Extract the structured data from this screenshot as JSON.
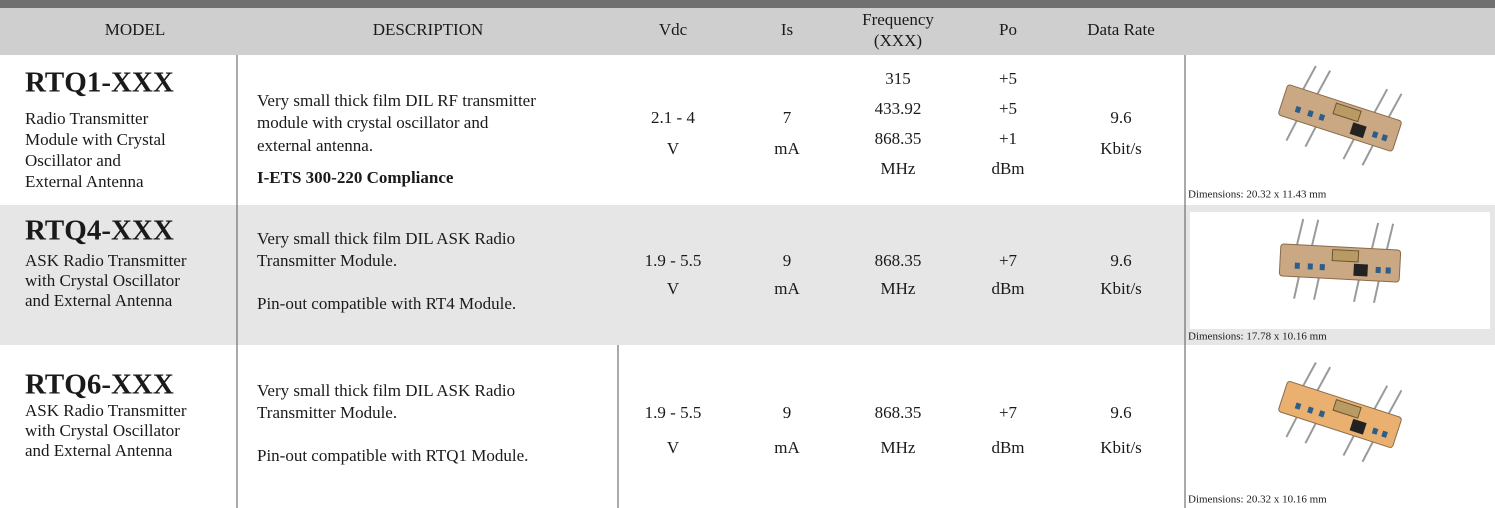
{
  "header": {
    "model": "MODEL",
    "description": "DESCRIPTION",
    "vdc": "Vdc",
    "is": "Is",
    "frequency": [
      "Frequency",
      "(XXX)"
    ],
    "po": "Po",
    "data_rate": "Data Rate"
  },
  "rows": [
    {
      "model": "RTQ1-XXX",
      "subtitle": [
        "Radio Transmitter",
        "Module with Crystal",
        "Oscillator and",
        "External Antenna"
      ],
      "description": [
        "Very small thick film DIL RF transmitter",
        "module with crystal oscillator and",
        "external antenna."
      ],
      "compliance": "I-ETS 300-220 Compliance",
      "vdc": [
        "2.1 - 4",
        "V"
      ],
      "is": [
        "7",
        "mA"
      ],
      "frequency": [
        "315",
        "433.92",
        "868.35",
        "MHz"
      ],
      "po": [
        "+5",
        "+5",
        "+1",
        "dBm"
      ],
      "data_rate": [
        "9.6",
        "Kbit/s"
      ],
      "dimensions": "Dimensions: 20.32 x 11.43 mm"
    },
    {
      "model": "RTQ4-XXX",
      "subtitle": [
        "ASK Radio Transmitter",
        "with Crystal Oscillator",
        "and External Antenna"
      ],
      "description": [
        "Very small thick film DIL ASK Radio",
        "Transmitter Module."
      ],
      "note": "Pin-out compatible with RT4 Module.",
      "vdc": [
        "1.9 - 5.5",
        "V"
      ],
      "is": [
        "9",
        "mA"
      ],
      "frequency": [
        "868.35",
        "MHz"
      ],
      "po": [
        "+7",
        "dBm"
      ],
      "data_rate": [
        "9.6",
        "Kbit/s"
      ],
      "dimensions": "Dimensions: 17.78 x 10.16 mm"
    },
    {
      "model": "RTQ6-XXX",
      "subtitle": [
        "ASK Radio Transmitter",
        "with Crystal Oscillator",
        "and External Antenna"
      ],
      "description": [
        "Very small thick film DIL ASK Radio",
        "Transmitter Module."
      ],
      "note": "Pin-out compatible with RTQ1 Module.",
      "vdc": [
        "1.9 - 5.5",
        "V"
      ],
      "is": [
        "9",
        "mA"
      ],
      "frequency": [
        "868.35",
        "MHz"
      ],
      "po": [
        "+7",
        "dBm"
      ],
      "data_rate": [
        "9.6",
        "Kbit/s"
      ],
      "dimensions": "Dimensions: 20.32 x 10.16 mm"
    }
  ]
}
